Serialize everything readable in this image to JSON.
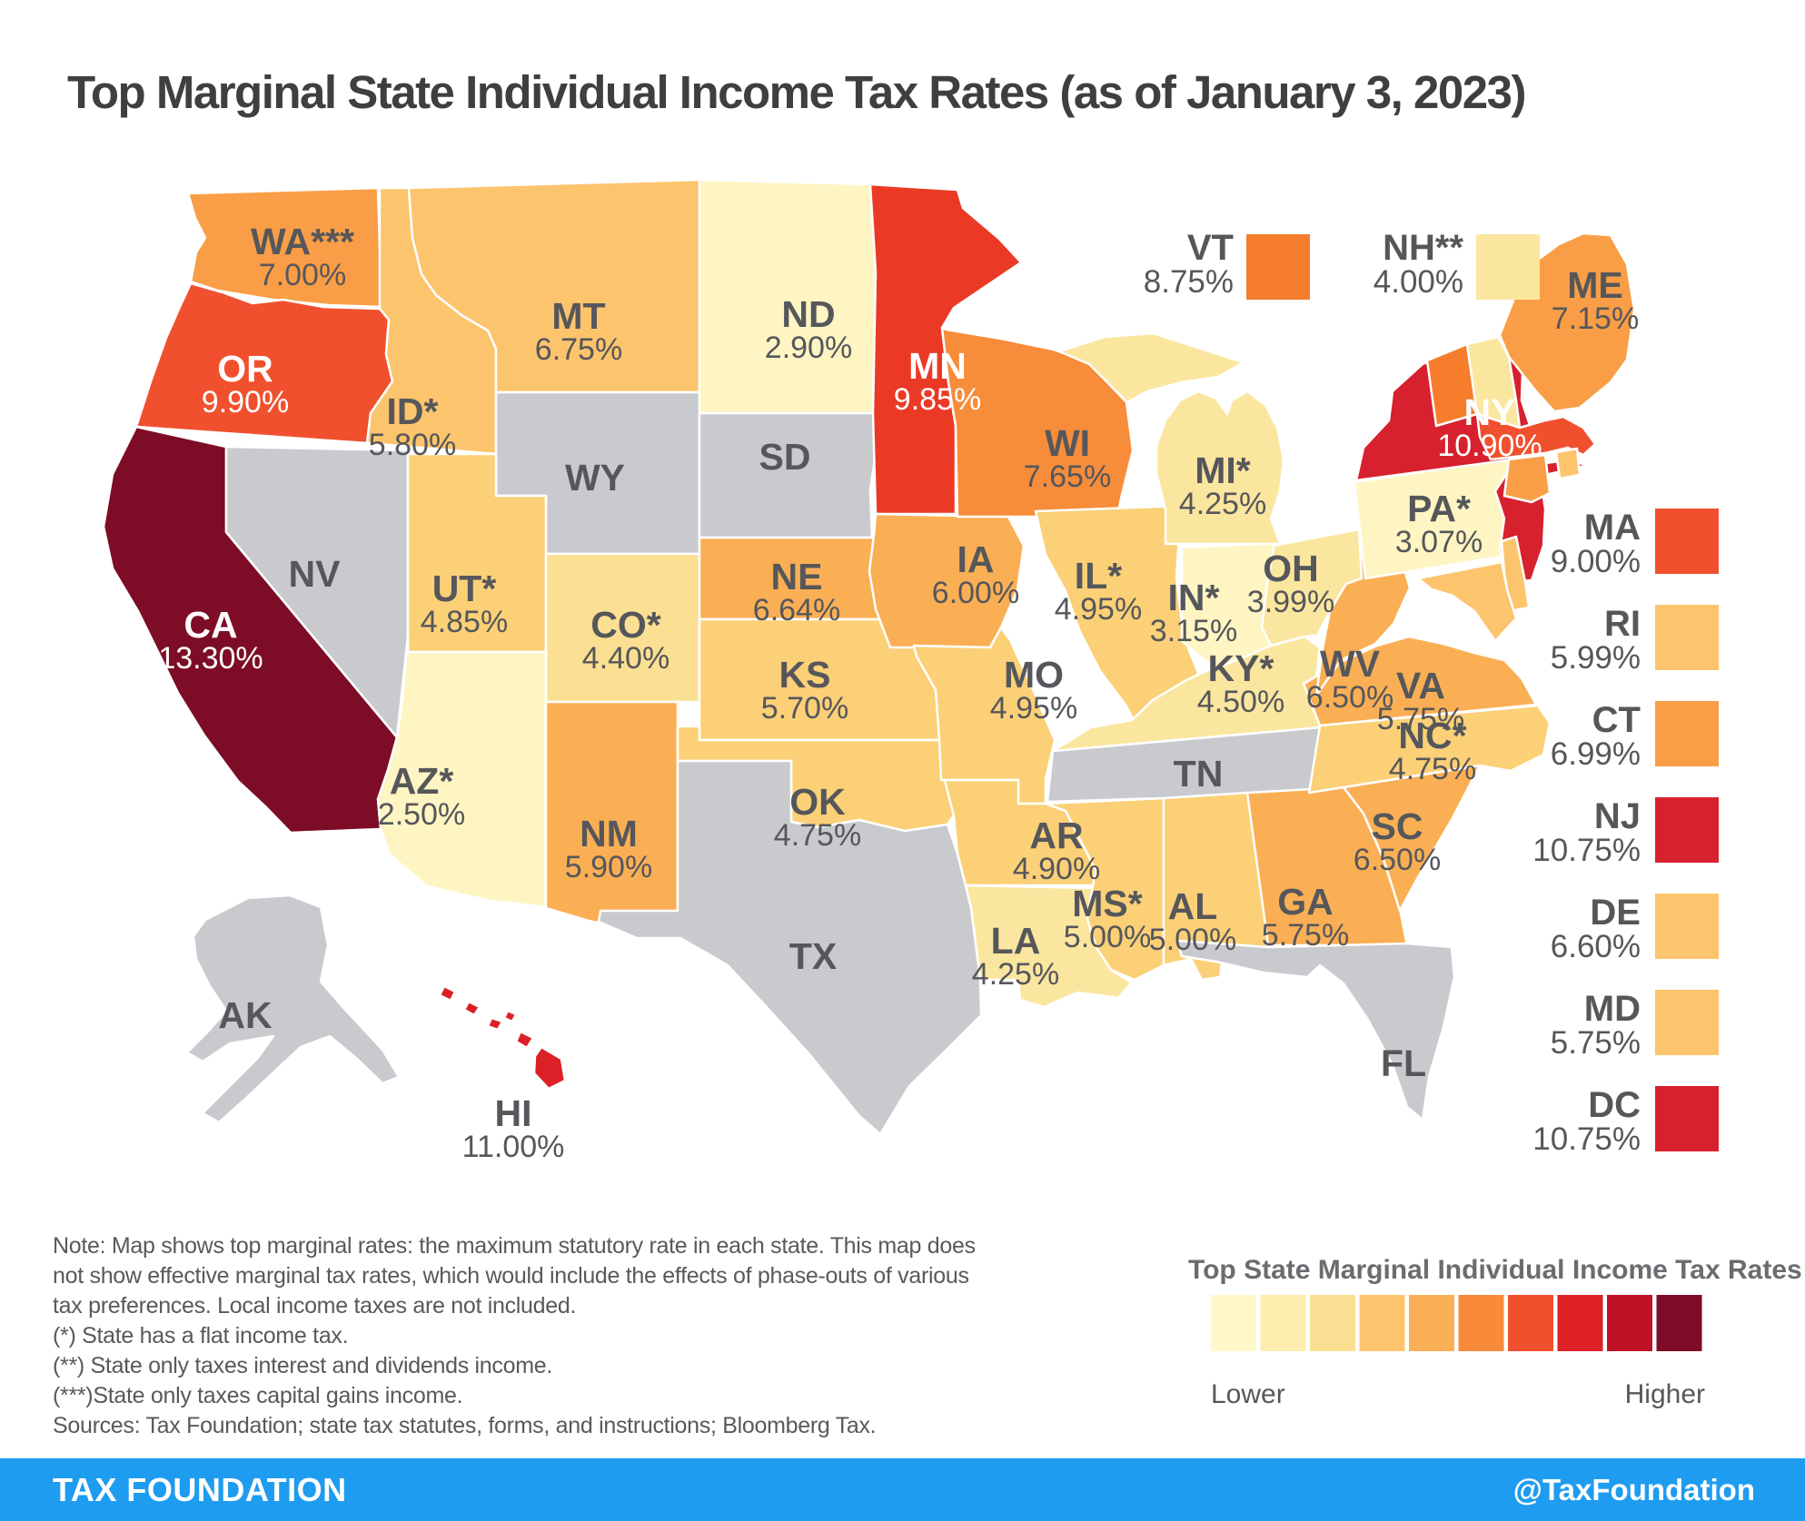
{
  "title": "Top Marginal State Individual Income Tax Rates (as of January 3, 2023)",
  "map": {
    "states": {
      "WA": {
        "label": "WA***",
        "rate": "7.00%",
        "color": "#F99E46"
      },
      "OR": {
        "label": "OR",
        "rate": "9.90%",
        "color": "#F1502F",
        "text_light": true
      },
      "CA": {
        "label": "CA",
        "rate": "13.30%",
        "color": "#7D0D26",
        "text_light": true
      },
      "NV": {
        "label": "NV",
        "rate": "",
        "color": "#C9CACD"
      },
      "ID": {
        "label": "ID*",
        "rate": "5.80%",
        "color": "#FCC46C"
      },
      "MT": {
        "label": "MT",
        "rate": "6.75%",
        "color": "#FCC46C"
      },
      "WY": {
        "label": "WY",
        "rate": "",
        "color": "#C9CACD"
      },
      "UT": {
        "label": "UT*",
        "rate": "4.85%",
        "color": "#FBD077"
      },
      "CO": {
        "label": "CO*",
        "rate": "4.40%",
        "color": "#FBDF92"
      },
      "AZ": {
        "label": "AZ*",
        "rate": "2.50%",
        "color": "#FEF5C3"
      },
      "NM": {
        "label": "NM",
        "rate": "5.90%",
        "color": "#FAAF55"
      },
      "ND": {
        "label": "ND",
        "rate": "2.90%",
        "color": "#FEF5C3"
      },
      "SD": {
        "label": "SD",
        "rate": "",
        "color": "#C9CACD"
      },
      "NE": {
        "label": "NE",
        "rate": "6.64%",
        "color": "#FAAF55"
      },
      "KS": {
        "label": "KS",
        "rate": "5.70%",
        "color": "#FBD077"
      },
      "OK": {
        "label": "OK",
        "rate": "4.75%",
        "color": "#FBD077"
      },
      "TX": {
        "label": "TX",
        "rate": "",
        "color": "#C9CACD"
      },
      "MN": {
        "label": "MN",
        "rate": "9.85%",
        "color": "#EA3A26",
        "text_light": true
      },
      "IA": {
        "label": "IA",
        "rate": "6.00%",
        "color": "#FAAF55"
      },
      "MO": {
        "label": "MO",
        "rate": "4.95%",
        "color": "#FBD077"
      },
      "AR": {
        "label": "AR",
        "rate": "4.90%",
        "color": "#FBD077"
      },
      "LA": {
        "label": "LA",
        "rate": "4.25%",
        "color": "#FBE6A0"
      },
      "WI": {
        "label": "WI",
        "rate": "7.65%",
        "color": "#F78C3B"
      },
      "IL": {
        "label": "IL*",
        "rate": "4.95%",
        "color": "#FBD077"
      },
      "MI": {
        "label": "MI*",
        "rate": "4.25%",
        "color": "#FBE6A0"
      },
      "IN": {
        "label": "IN*",
        "rate": "3.15%",
        "color": "#FEF5C3"
      },
      "OH": {
        "label": "OH",
        "rate": "3.99%",
        "color": "#FBE6A0"
      },
      "KY": {
        "label": "KY*",
        "rate": "4.50%",
        "color": "#FBE6A0"
      },
      "TN": {
        "label": "TN",
        "rate": "",
        "color": "#C9CACD"
      },
      "MS": {
        "label": "MS*",
        "rate": "5.00%",
        "color": "#FBD077"
      },
      "AL": {
        "label": "AL",
        "rate": "5.00%",
        "color": "#FBD077"
      },
      "GA": {
        "label": "GA",
        "rate": "5.75%",
        "color": "#FAAF55"
      },
      "FL": {
        "label": "FL",
        "rate": "",
        "color": "#C9CACD"
      },
      "SC": {
        "label": "SC",
        "rate": "6.50%",
        "color": "#FAAF55"
      },
      "NC": {
        "label": "NC*",
        "rate": "4.75%",
        "color": "#FBD077"
      },
      "VA": {
        "label": "VA",
        "rate": "5.75%",
        "color": "#FAAF55"
      },
      "WV": {
        "label": "WV",
        "rate": "6.50%",
        "color": "#FAAF55"
      },
      "PA": {
        "label": "PA*",
        "rate": "3.07%",
        "color": "#FEF5C3"
      },
      "NY": {
        "label": "NY",
        "rate": "10.90%",
        "color": "#D7212E",
        "text_light": true
      },
      "ME": {
        "label": "ME",
        "rate": "7.15%",
        "color": "#F99E46"
      },
      "VT": {
        "label": "VT",
        "rate": "8.75%",
        "color": "#F57D2C"
      },
      "NH": {
        "label": "NH**",
        "rate": "4.00%",
        "color": "#FBE6A0"
      },
      "MA": {
        "label": "MA",
        "rate": "9.00%",
        "color": "#F1502F"
      },
      "CT": {
        "label": "CT",
        "rate": "6.99%",
        "color": "#F99E46"
      },
      "RI": {
        "label": "RI",
        "rate": "5.99%",
        "color": "#FCC46C"
      },
      "NJ": {
        "label": "NJ",
        "rate": "10.75%",
        "color": "#D7212E"
      },
      "DE": {
        "label": "DE",
        "rate": "6.60%",
        "color": "#FCC46C"
      },
      "MD": {
        "label": "MD",
        "rate": "5.75%",
        "color": "#FCC46C"
      },
      "DC": {
        "label": "DC",
        "rate": "10.75%",
        "color": "#D7212E"
      },
      "AK": {
        "label": "AK",
        "rate": "",
        "color": "#C9CACD"
      },
      "HI": {
        "label": "HI",
        "rate": "11.00%",
        "color": "#DC2027"
      }
    },
    "top_legend": [
      "VT",
      "NH"
    ],
    "right_legend": [
      "MA",
      "RI",
      "CT",
      "NJ",
      "DE",
      "MD",
      "DC"
    ]
  },
  "legend": {
    "title": "Top State Marginal Individual Income Tax Rates",
    "low_label": "Lower",
    "high_label": "Higher",
    "swatches": [
      "#FEF8CB",
      "#FDEDAE",
      "#FBDF92",
      "#FCC46C",
      "#FAAF55",
      "#F88A3A",
      "#F1502F",
      "#DE2127",
      "#BE1126",
      "#7D0D26"
    ]
  },
  "notes": {
    "line1": "Note: Map shows top marginal rates: the maximum statutory rate in each state. This map does",
    "line2": "not show effective marginal tax rates, which would include the effects of phase-outs of various",
    "line3": "tax preferences. Local income taxes are not included.",
    "line4": "(*) State has a flat income tax.",
    "line5": "(**) State only taxes interest and dividends income.",
    "line6": "(***)State only taxes capital gains income.",
    "line7": "Sources: Tax Foundation; state tax statutes, forms, and instructions; Bloomberg Tax."
  },
  "footer": {
    "brand": "TAX FOUNDATION",
    "handle": "@TaxFoundation",
    "bg": "#1E9CF0"
  },
  "chart_data": {
    "type": "heatmap",
    "variant": "us-state-choropleth",
    "title": "Top Marginal State Individual Income Tax Rates (as of January 3, 2023)",
    "unit": "percent",
    "legend": {
      "title": "Top State Marginal Individual Income Tax Rates",
      "low": "Lower",
      "high": "Higher"
    },
    "footnote_meanings": {
      "*": "State has a flat income tax.",
      "**": "State only taxes interest and dividends income.",
      "***": "State only taxes capital gains income."
    },
    "series": [
      {
        "state": "AK",
        "rate": null,
        "footnote": null
      },
      {
        "state": "AL",
        "rate": 5.0,
        "footnote": null
      },
      {
        "state": "AR",
        "rate": 4.9,
        "footnote": null
      },
      {
        "state": "AZ",
        "rate": 2.5,
        "footnote": "*"
      },
      {
        "state": "CA",
        "rate": 13.3,
        "footnote": null
      },
      {
        "state": "CO",
        "rate": 4.4,
        "footnote": "*"
      },
      {
        "state": "CT",
        "rate": 6.99,
        "footnote": null
      },
      {
        "state": "DC",
        "rate": 10.75,
        "footnote": null
      },
      {
        "state": "DE",
        "rate": 6.6,
        "footnote": null
      },
      {
        "state": "FL",
        "rate": null,
        "footnote": null
      },
      {
        "state": "GA",
        "rate": 5.75,
        "footnote": null
      },
      {
        "state": "HI",
        "rate": 11.0,
        "footnote": null
      },
      {
        "state": "IA",
        "rate": 6.0,
        "footnote": null
      },
      {
        "state": "ID",
        "rate": 5.8,
        "footnote": "*"
      },
      {
        "state": "IL",
        "rate": 4.95,
        "footnote": "*"
      },
      {
        "state": "IN",
        "rate": 3.15,
        "footnote": "*"
      },
      {
        "state": "KS",
        "rate": 5.7,
        "footnote": null
      },
      {
        "state": "KY",
        "rate": 4.5,
        "footnote": "*"
      },
      {
        "state": "LA",
        "rate": 4.25,
        "footnote": null
      },
      {
        "state": "MA",
        "rate": 9.0,
        "footnote": null
      },
      {
        "state": "MD",
        "rate": 5.75,
        "footnote": null
      },
      {
        "state": "ME",
        "rate": 7.15,
        "footnote": null
      },
      {
        "state": "MI",
        "rate": 4.25,
        "footnote": "*"
      },
      {
        "state": "MN",
        "rate": 9.85,
        "footnote": null
      },
      {
        "state": "MO",
        "rate": 4.95,
        "footnote": null
      },
      {
        "state": "MS",
        "rate": 5.0,
        "footnote": "*"
      },
      {
        "state": "MT",
        "rate": 6.75,
        "footnote": null
      },
      {
        "state": "NC",
        "rate": 4.75,
        "footnote": "*"
      },
      {
        "state": "ND",
        "rate": 2.9,
        "footnote": null
      },
      {
        "state": "NE",
        "rate": 6.64,
        "footnote": null
      },
      {
        "state": "NH",
        "rate": 4.0,
        "footnote": "**"
      },
      {
        "state": "NJ",
        "rate": 10.75,
        "footnote": null
      },
      {
        "state": "NM",
        "rate": 5.9,
        "footnote": null
      },
      {
        "state": "NV",
        "rate": null,
        "footnote": null
      },
      {
        "state": "NY",
        "rate": 10.9,
        "footnote": null
      },
      {
        "state": "OH",
        "rate": 3.99,
        "footnote": null
      },
      {
        "state": "OK",
        "rate": 4.75,
        "footnote": null
      },
      {
        "state": "OR",
        "rate": 9.9,
        "footnote": null
      },
      {
        "state": "PA",
        "rate": 3.07,
        "footnote": "*"
      },
      {
        "state": "RI",
        "rate": 5.99,
        "footnote": null
      },
      {
        "state": "SC",
        "rate": 6.5,
        "footnote": null
      },
      {
        "state": "SD",
        "rate": null,
        "footnote": null
      },
      {
        "state": "TN",
        "rate": null,
        "footnote": null
      },
      {
        "state": "TX",
        "rate": null,
        "footnote": null
      },
      {
        "state": "UT",
        "rate": 4.85,
        "footnote": "*"
      },
      {
        "state": "VA",
        "rate": 5.75,
        "footnote": null
      },
      {
        "state": "VT",
        "rate": 8.75,
        "footnote": null
      },
      {
        "state": "WA",
        "rate": 7.0,
        "footnote": "***"
      },
      {
        "state": "WI",
        "rate": 7.65,
        "footnote": null
      },
      {
        "state": "WV",
        "rate": 6.5,
        "footnote": null
      },
      {
        "state": "WY",
        "rate": null,
        "footnote": null
      }
    ]
  }
}
